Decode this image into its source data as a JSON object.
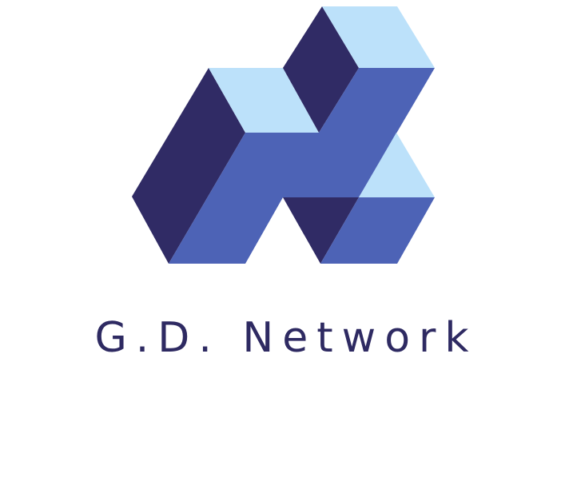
{
  "brand": {
    "name": "G.D. Network"
  },
  "colors": {
    "navy": "#302B65",
    "blue": "#4D63B6",
    "light_blue": "#BCE1FA",
    "text": "#2E2A62"
  },
  "logo": {
    "icon": "isometric-cubes-n-logo-icon"
  }
}
